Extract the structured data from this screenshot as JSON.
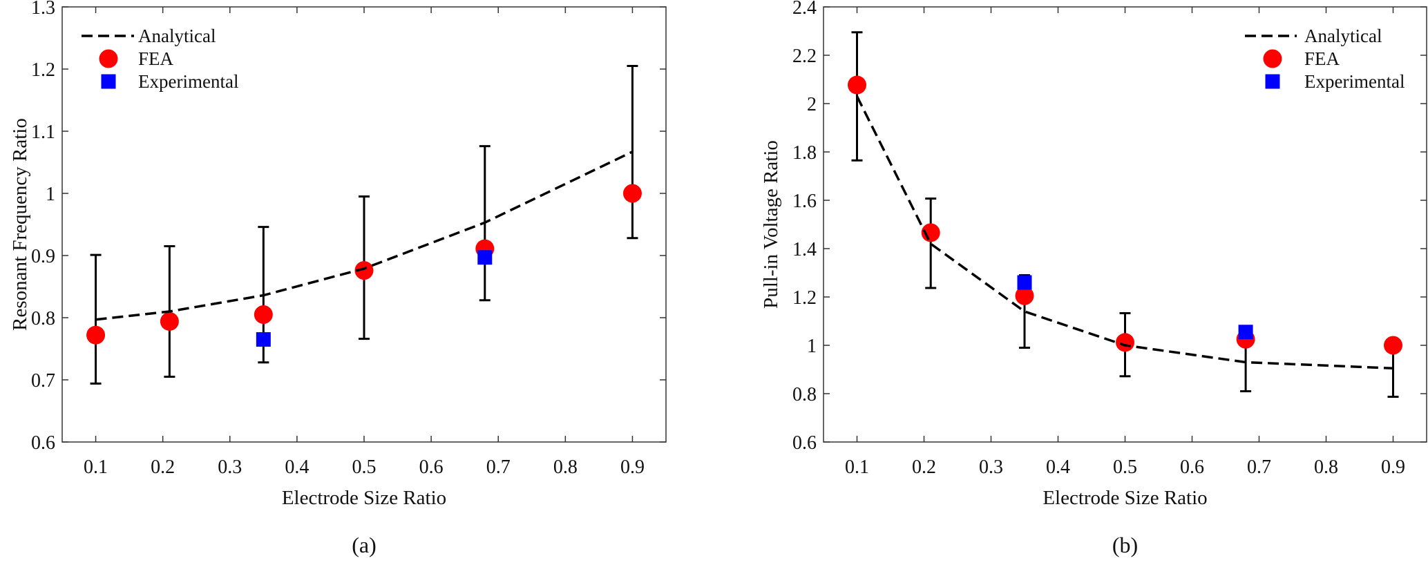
{
  "chart_data": [
    {
      "type": "scatter",
      "panel_label": "(a)",
      "xlabel": "Electrode Size Ratio",
      "ylabel": "Resonant Frequency Ratio",
      "xlim": [
        0.05,
        0.95
      ],
      "ylim": [
        0.6,
        1.3
      ],
      "xticks": [
        "0.1",
        "0.2",
        "0.3",
        "0.4",
        "0.5",
        "0.6",
        "0.7",
        "0.8",
        "0.9"
      ],
      "yticks": [
        "0.6",
        "0.7",
        "0.8",
        "0.9",
        "1",
        "1.1",
        "1.2",
        "1.3"
      ],
      "legend_position": "top-left",
      "grid": false,
      "series": [
        {
          "name": "Analytical",
          "kind": "dashed-line-with-errorbars",
          "color": "#000000",
          "x": [
            0.1,
            0.21,
            0.35,
            0.5,
            0.68,
            0.9
          ],
          "y": [
            0.797,
            0.81,
            0.836,
            0.879,
            0.953,
            1.067
          ],
          "err_low": [
            0.694,
            0.705,
            0.728,
            0.766,
            0.828,
            0.928
          ],
          "err_high": [
            0.901,
            0.915,
            0.946,
            0.995,
            1.076,
            1.205
          ]
        },
        {
          "name": "FEA",
          "kind": "circle",
          "color": "#ff0000",
          "x": [
            0.1,
            0.21,
            0.35,
            0.5,
            0.68,
            0.9
          ],
          "y": [
            0.772,
            0.794,
            0.805,
            0.876,
            0.911,
            1.0
          ]
        },
        {
          "name": "Experimental",
          "kind": "square",
          "color": "#0000ff",
          "x": [
            0.35,
            0.68
          ],
          "y": [
            0.765,
            0.897
          ]
        }
      ]
    },
    {
      "type": "scatter",
      "panel_label": "(b)",
      "xlabel": "Electrode Size Ratio",
      "ylabel": "Pull-in Voltage Ratio",
      "xlim": [
        0.05,
        0.95
      ],
      "ylim": [
        0.6,
        2.4
      ],
      "xticks": [
        "0.1",
        "0.2",
        "0.3",
        "0.4",
        "0.5",
        "0.6",
        "0.7",
        "0.8",
        "0.9"
      ],
      "yticks": [
        "0.6",
        "0.8",
        "1",
        "1.2",
        "1.4",
        "1.6",
        "1.8",
        "2",
        "2.2",
        "2.4"
      ],
      "legend_position": "top-right",
      "grid": false,
      "series": [
        {
          "name": "Analytical",
          "kind": "dashed-line-with-errorbars",
          "color": "#000000",
          "x": [
            0.1,
            0.21,
            0.35,
            0.5,
            0.68,
            0.9
          ],
          "y": [
            2.03,
            1.42,
            1.14,
            1.0,
            0.93,
            0.905
          ],
          "err_low": [
            1.765,
            1.237,
            0.99,
            0.872,
            0.81,
            0.787
          ],
          "err_high": [
            2.295,
            1.607,
            1.29,
            1.133,
            1.05,
            1.02
          ]
        },
        {
          "name": "FEA",
          "kind": "circle",
          "color": "#ff0000",
          "x": [
            0.1,
            0.21,
            0.35,
            0.5,
            0.68,
            0.9
          ],
          "y": [
            2.077,
            1.466,
            1.205,
            1.012,
            1.025,
            1.0
          ]
        },
        {
          "name": "Experimental",
          "kind": "square",
          "color": "#0000ff",
          "x": [
            0.35,
            0.68
          ],
          "y": [
            1.26,
            1.055
          ]
        }
      ]
    }
  ]
}
